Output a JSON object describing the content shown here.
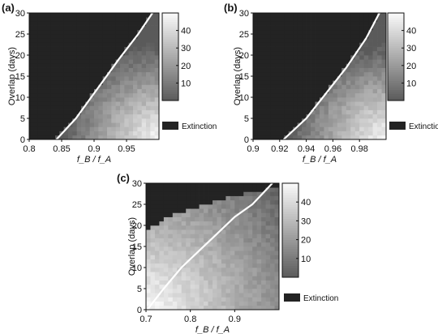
{
  "chart_data": [
    {
      "panel": "(a)",
      "type": "heatmap",
      "xlabel": "f_B / f_A",
      "ylabel": "Overlap (days)",
      "x_range": [
        0.8,
        1.0
      ],
      "y_range": [
        0,
        30
      ],
      "x_ticks": [
        "0.8",
        "0.85",
        "0.9",
        "0.95"
      ],
      "x_tick_values": [
        0.8,
        0.85,
        0.9,
        0.95
      ],
      "y_ticks": [
        "0",
        "5",
        "10",
        "15",
        "20",
        "25",
        "30"
      ],
      "y_tick_values": [
        0,
        5,
        10,
        15,
        20,
        25,
        30
      ],
      "colorbar_ticks": [
        "10",
        "20",
        "30",
        "40"
      ],
      "colorbar_tick_values": [
        10,
        20,
        30,
        40
      ],
      "colorbar_range": [
        0,
        50
      ],
      "legend": "Extinction",
      "boundary_line": {
        "x": [
          0.842,
          0.872,
          0.905,
          0.938,
          0.968,
          0.99
        ],
        "y": [
          0,
          5,
          12,
          19,
          25,
          30
        ]
      },
      "bright_corner": {
        "x": 1.0,
        "y": 0
      },
      "grid": {
        "nx": 30,
        "ny": 30
      }
    },
    {
      "panel": "(b)",
      "type": "heatmap",
      "xlabel": "f_B / f_A",
      "ylabel": "Overlap (days)",
      "x_range": [
        0.9,
        1.0
      ],
      "y_range": [
        0,
        30
      ],
      "x_ticks": [
        "0.9",
        "0.92",
        "0.94",
        "0.96",
        "0.98"
      ],
      "x_tick_values": [
        0.9,
        0.92,
        0.94,
        0.96,
        0.98
      ],
      "y_ticks": [
        "0",
        "5",
        "10",
        "15",
        "20",
        "25",
        "30"
      ],
      "y_tick_values": [
        0,
        5,
        10,
        15,
        20,
        25,
        30
      ],
      "colorbar_ticks": [
        "10",
        "20",
        "30",
        "40"
      ],
      "colorbar_tick_values": [
        10,
        20,
        30,
        40
      ],
      "colorbar_range": [
        0,
        50
      ],
      "legend": "Extinction",
      "boundary_line": {
        "x": [
          0.923,
          0.94,
          0.955,
          0.97,
          0.985,
          0.995
        ],
        "y": [
          0,
          5,
          11,
          17,
          24,
          30
        ]
      },
      "bright_corner": {
        "x": 1.0,
        "y": 0
      },
      "grid": {
        "nx": 30,
        "ny": 30
      }
    },
    {
      "panel": "(c)",
      "type": "heatmap",
      "xlabel": "f_B / f_A",
      "ylabel": "Overlap (days)",
      "x_range": [
        0.7,
        1.0
      ],
      "y_range": [
        0,
        30
      ],
      "x_ticks": [
        "0.7",
        "0.8",
        "0.9"
      ],
      "x_tick_values": [
        0.7,
        0.8,
        0.9
      ],
      "y_ticks": [
        "0",
        "5",
        "10",
        "15",
        "20",
        "25",
        "30"
      ],
      "y_tick_values": [
        0,
        5,
        10,
        15,
        20,
        25,
        30
      ],
      "colorbar_ticks": [
        "10",
        "20",
        "30",
        "40"
      ],
      "colorbar_tick_values": [
        10,
        20,
        30,
        40
      ],
      "colorbar_range": [
        0,
        50
      ],
      "legend": "Extinction",
      "boundary_line": {
        "x": [
          0.703,
          0.74,
          0.78,
          0.82,
          0.86,
          0.9,
          0.94,
          0.985
        ],
        "y": [
          0,
          5,
          10,
          14,
          18,
          22,
          25,
          30
        ]
      },
      "extinction_edge": {
        "x": [
          0.7,
          0.72,
          0.75,
          0.8,
          0.85,
          0.9,
          0.95,
          0.985
        ],
        "y": [
          18,
          20,
          22,
          24,
          25.5,
          27,
          28,
          29
        ]
      },
      "bright_corner": {
        "x": 0.7,
        "y": 0
      },
      "grid": {
        "nx": 30,
        "ny": 30
      }
    }
  ]
}
